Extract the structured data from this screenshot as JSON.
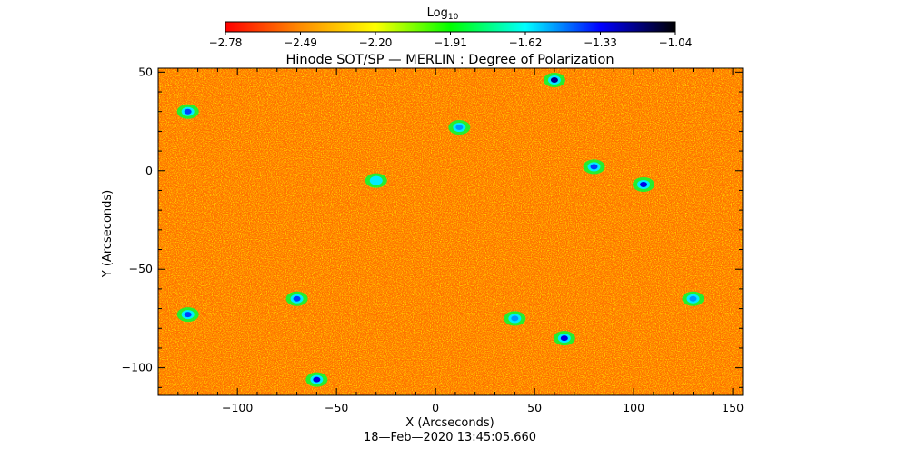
{
  "chart_data": {
    "type": "heatmap",
    "title": "Hinode SOT/SP — MERLIN : Degree of Polarization",
    "xlabel": "X (Arcseconds)",
    "ylabel": "Y (Arcseconds)",
    "xlim": [
      -140,
      155
    ],
    "ylim": [
      -114,
      52
    ],
    "x_ticks": [
      -100,
      -50,
      0,
      50,
      100,
      150
    ],
    "y_ticks": [
      -100,
      -50,
      0,
      50
    ],
    "x_tick_labels": [
      "−100",
      "−50",
      "0",
      "50",
      "100",
      "150"
    ],
    "y_tick_labels": [
      "−100",
      "−50",
      "0",
      "50"
    ],
    "colorbar": {
      "label_base": "Log",
      "label_sub": "10",
      "range": [
        -2.78,
        -1.04
      ],
      "ticks": [
        -2.78,
        -2.49,
        -2.2,
        -1.91,
        -1.62,
        -1.33,
        -1.04
      ],
      "tick_labels": [
        "−2.78",
        "−2.49",
        "−2.20",
        "−1.91",
        "−1.62",
        "−1.33",
        "−1.04"
      ],
      "colors": [
        "#ff0000",
        "#ff8c00",
        "#ffff00",
        "#00ff00",
        "#00ffff",
        "#0000ff",
        "#000000"
      ]
    },
    "background_level": -2.6,
    "grid": false,
    "strong_features": [
      {
        "x": 60,
        "y": 46,
        "level": -1.2
      },
      {
        "x": -60,
        "y": -106,
        "level": -1.3
      },
      {
        "x": 65,
        "y": -85,
        "level": -1.3
      },
      {
        "x": -125,
        "y": 30,
        "level": -1.4
      },
      {
        "x": -70,
        "y": -65,
        "level": -1.4
      },
      {
        "x": 105,
        "y": -7,
        "level": -1.3
      },
      {
        "x": 80,
        "y": 2,
        "level": -1.4
      },
      {
        "x": -125,
        "y": -73,
        "level": -1.4
      },
      {
        "x": 40,
        "y": -75,
        "level": -1.5
      },
      {
        "x": -30,
        "y": -5,
        "level": -1.6
      },
      {
        "x": 130,
        "y": -65,
        "level": -1.5
      },
      {
        "x": 12,
        "y": 22,
        "level": -1.5
      }
    ]
  },
  "timestamp": "18—Feb—2020 13:45:05.660"
}
